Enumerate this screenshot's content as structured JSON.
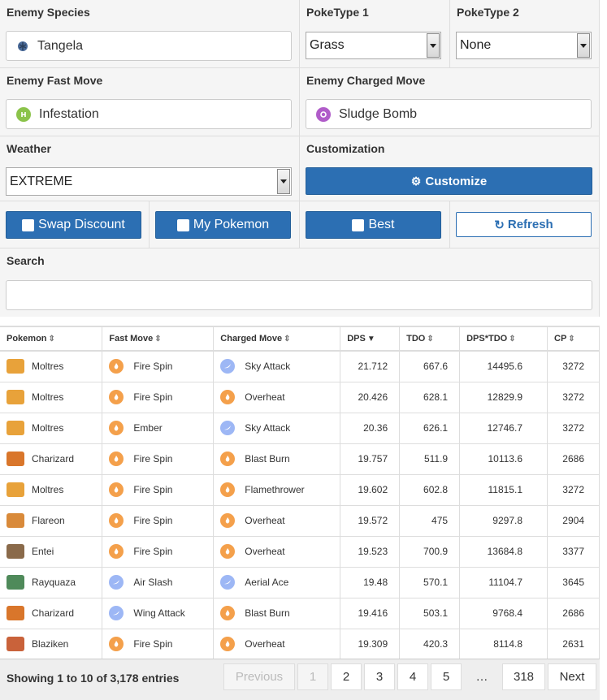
{
  "form": {
    "enemy_species": {
      "label": "Enemy Species",
      "value": "Tangela",
      "icon": "grass-icon"
    },
    "poketype1": {
      "label": "PokeType 1",
      "value": "Grass"
    },
    "poketype2": {
      "label": "PokeType 2",
      "value": "None"
    },
    "fast_move": {
      "label": "Enemy Fast Move",
      "value": "Infestation",
      "color": "#8bc34a"
    },
    "charged_move": {
      "label": "Enemy Charged Move",
      "value": "Sludge Bomb",
      "color": "#b05cc9"
    },
    "weather": {
      "label": "Weather",
      "value": "EXTREME"
    },
    "customization": {
      "label": "Customization",
      "button": "Customize"
    },
    "swap_discount": "Swap Discount",
    "my_pokemon": "My Pokemon",
    "best": "Best",
    "refresh": "Refresh",
    "search": {
      "label": "Search",
      "value": ""
    }
  },
  "table": {
    "headers": [
      "Pokemon",
      "Fast Move",
      "Charged Move",
      "DPS",
      "TDO",
      "DPS*TDO",
      "CP"
    ],
    "rows": [
      {
        "pokemon": "Moltres",
        "fast": "Fire Spin",
        "fast_type": "fire",
        "charged": "Sky Attack",
        "charged_type": "flying",
        "dps": "21.712",
        "tdo": "667.6",
        "dpstdo": "14495.6",
        "cp": "3272",
        "pk_color": "#e8a23a"
      },
      {
        "pokemon": "Moltres",
        "fast": "Fire Spin",
        "fast_type": "fire",
        "charged": "Overheat",
        "charged_type": "fire",
        "dps": "20.426",
        "tdo": "628.1",
        "dpstdo": "12829.9",
        "cp": "3272",
        "pk_color": "#e8a23a"
      },
      {
        "pokemon": "Moltres",
        "fast": "Ember",
        "fast_type": "fire",
        "charged": "Sky Attack",
        "charged_type": "flying",
        "dps": "20.36",
        "tdo": "626.1",
        "dpstdo": "12746.7",
        "cp": "3272",
        "pk_color": "#e8a23a"
      },
      {
        "pokemon": "Charizard",
        "fast": "Fire Spin",
        "fast_type": "fire",
        "charged": "Blast Burn",
        "charged_type": "fire",
        "dps": "19.757",
        "tdo": "511.9",
        "dpstdo": "10113.6",
        "cp": "2686",
        "pk_color": "#d9762b"
      },
      {
        "pokemon": "Moltres",
        "fast": "Fire Spin",
        "fast_type": "fire",
        "charged": "Flamethrower",
        "charged_type": "fire",
        "dps": "19.602",
        "tdo": "602.8",
        "dpstdo": "11815.1",
        "cp": "3272",
        "pk_color": "#e8a23a"
      },
      {
        "pokemon": "Flareon",
        "fast": "Fire Spin",
        "fast_type": "fire",
        "charged": "Overheat",
        "charged_type": "fire",
        "dps": "19.572",
        "tdo": "475",
        "dpstdo": "9297.8",
        "cp": "2904",
        "pk_color": "#d98a3a"
      },
      {
        "pokemon": "Entei",
        "fast": "Fire Spin",
        "fast_type": "fire",
        "charged": "Overheat",
        "charged_type": "fire",
        "dps": "19.523",
        "tdo": "700.9",
        "dpstdo": "13684.8",
        "cp": "3377",
        "pk_color": "#8a6a4a"
      },
      {
        "pokemon": "Rayquaza",
        "fast": "Air Slash",
        "fast_type": "flying",
        "charged": "Aerial Ace",
        "charged_type": "flying",
        "dps": "19.48",
        "tdo": "570.1",
        "dpstdo": "11104.7",
        "cp": "3645",
        "pk_color": "#4f8a5a"
      },
      {
        "pokemon": "Charizard",
        "fast": "Wing Attack",
        "fast_type": "flying",
        "charged": "Blast Burn",
        "charged_type": "fire",
        "dps": "19.416",
        "tdo": "503.1",
        "dpstdo": "9768.4",
        "cp": "2686",
        "pk_color": "#d9762b"
      },
      {
        "pokemon": "Blaziken",
        "fast": "Fire Spin",
        "fast_type": "fire",
        "charged": "Overheat",
        "charged_type": "fire",
        "dps": "19.309",
        "tdo": "420.3",
        "dpstdo": "8114.8",
        "cp": "2631",
        "pk_color": "#c9623a"
      }
    ]
  },
  "footer": {
    "info": "Showing 1 to 10 of 3,178 entries",
    "previous": "Previous",
    "pages": [
      "1",
      "2",
      "3",
      "4",
      "5"
    ],
    "ellipsis": "…",
    "last": "318",
    "next": "Next"
  },
  "colors": {
    "primary": "#2c6fb3",
    "fire": "#f4a04b",
    "flying": "#9db7f5"
  }
}
